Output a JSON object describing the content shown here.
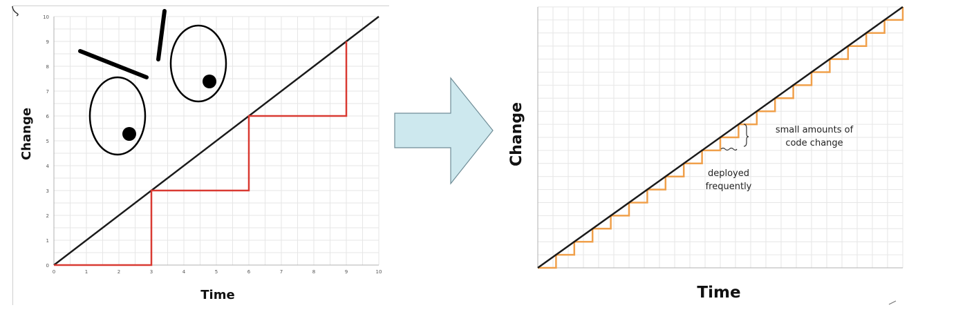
{
  "colors": {
    "grid": "#e6e6e6",
    "axis": "#b0b0b0",
    "diagonal": "#1a1a1a",
    "steps_left": "#d93a32",
    "steps_right": "#f0a04b",
    "arrow_fill": "#cde8ee",
    "arrow_stroke": "#6f8c96"
  },
  "chart_data": [
    {
      "type": "line",
      "ylabel": "Change",
      "xlabel": "Time",
      "xlim": [
        0,
        10
      ],
      "ylim": [
        0,
        10
      ],
      "grid": true,
      "x_ticks": [
        "0",
        "1",
        "2",
        "3",
        "4",
        "5",
        "6",
        "7",
        "8",
        "9",
        "10"
      ],
      "y_ticks": [
        "0",
        "1",
        "2",
        "3",
        "4",
        "5",
        "6",
        "7",
        "8",
        "9",
        "10"
      ],
      "series": [
        {
          "x": [
            0,
            10
          ],
          "y": [
            0,
            10
          ]
        },
        {
          "x": [
            0,
            3,
            3,
            6,
            6,
            9,
            9
          ],
          "y": [
            0,
            0,
            3,
            3,
            6,
            6,
            9
          ]
        }
      ]
    },
    {
      "type": "line",
      "ylabel": "Change",
      "xlabel": "Time",
      "grid": true,
      "step_count": 20,
      "annotations": [
        "small amounts of code change",
        "deployed frequently"
      ]
    }
  ],
  "annotations": {
    "small_change_line1": "small amounts of",
    "small_change_line2": "code change",
    "deployed_line1": "deployed",
    "deployed_line2": "frequently"
  }
}
